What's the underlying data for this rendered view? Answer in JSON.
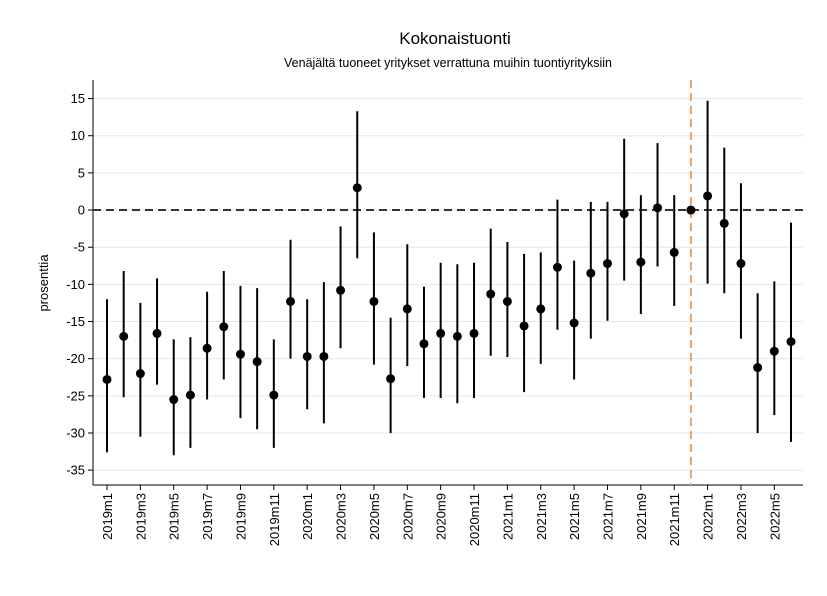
{
  "chart_data": {
    "type": "errorbar",
    "title": "Kokonaistuonti",
    "subtitle": "Venäjältä tuoneet yritykset verrattuna muihin tuontiyrityksiin",
    "y_label": "prosenttia",
    "categories": [
      "2019m1",
      null,
      "2019m3",
      null,
      "2019m5",
      null,
      "2019m7",
      null,
      "2019m9",
      null,
      "2019m11",
      null,
      "2020m1",
      null,
      "2020m3",
      null,
      "2020m5",
      null,
      "2020m7",
      null,
      "2020m9",
      null,
      "2020m11",
      null,
      "2021m1",
      null,
      "2021m3",
      null,
      "2021m5",
      null,
      "2021m7",
      null,
      "2021m9",
      null,
      "2021m11",
      null,
      "2022m1",
      null,
      "2022m3",
      null,
      "2022m5",
      null
    ],
    "series": [
      {
        "color": "#000000",
        "values": [
          -22.8,
          -17,
          -22,
          -16.6,
          -25.5,
          -24.9,
          -18.6,
          -15.7,
          -19.4,
          -20.4,
          -24.9,
          -12.3,
          -19.7,
          -19.7,
          -10.8,
          3,
          -12.3,
          -22.7,
          -13.3,
          -18,
          -16.6,
          -17,
          -16.6,
          -11.3,
          -12.3,
          -15.6,
          -13.3,
          -7.7,
          -15.2,
          -8.5,
          -7.2,
          -0.5,
          -7,
          0.3,
          -5.7,
          0,
          1.9,
          -1.8,
          -7.2,
          -21.2,
          -19,
          -17.7
        ],
        "lower": [
          -32.6,
          -25.2,
          -30.5,
          -23.5,
          -33,
          -32,
          -25.5,
          -22.8,
          -28,
          -29.5,
          -32,
          -20,
          -26.8,
          -28.7,
          -18.6,
          -6.5,
          -20.8,
          -30,
          -21,
          -25.3,
          -25.3,
          -26,
          -25.3,
          -19.6,
          -19.8,
          -24.5,
          -20.7,
          -16.1,
          -22.8,
          -17.3,
          -14.9,
          -9.5,
          -14,
          -7.6,
          -12.9,
          0,
          -9.9,
          -11.2,
          -17.3,
          -30,
          -27.6,
          -31.2
        ],
        "upper": [
          -12,
          -8.2,
          -12.5,
          -9.2,
          -17.4,
          -17.1,
          -11,
          -8.2,
          -10.2,
          -10.5,
          -17.4,
          -4,
          -12,
          -9.7,
          -2.2,
          13.3,
          -3,
          -14.5,
          -4.6,
          -10.3,
          -7.1,
          -7.3,
          -7.1,
          -2.5,
          -4.3,
          -5.9,
          -5.7,
          1.4,
          -6.8,
          1.1,
          1.1,
          9.6,
          2,
          9,
          2,
          0,
          14.7,
          8.4,
          3.6,
          -11.2,
          -9.6,
          -1.7
        ]
      }
    ],
    "ylim": [
      -37,
      17.5
    ],
    "yticks": [
      15,
      10,
      5,
      0,
      -5,
      -10,
      -15,
      -20,
      -25,
      -30,
      -35
    ],
    "grid": true,
    "hline": 0,
    "hline_color": "#333333",
    "vline": 35,
    "vline_color": "#f0a060"
  }
}
